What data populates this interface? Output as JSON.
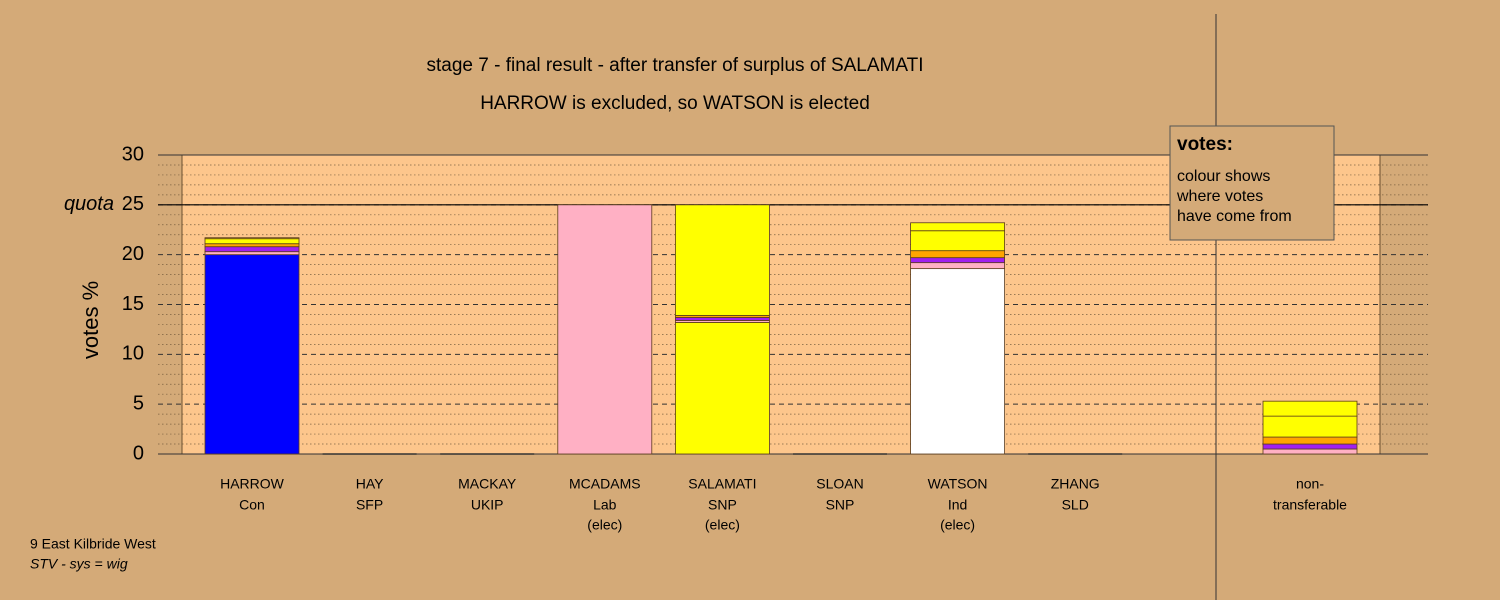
{
  "chart_data": {
    "type": "stacked-bar",
    "title": "stage 7 - final result - after transfer of surplus of SALAMATI",
    "subtitle": "HARROW is excluded, so WATSON is elected",
    "y_label": "votes %",
    "quota_label": "quota",
    "quota": 25,
    "categories": [
      "HARROW",
      "HAY",
      "MACKAY",
      "MCADAMS",
      "SALAMATI",
      "SLOAN",
      "WATSON",
      "ZHANG",
      "non-"
    ],
    "parties": [
      "Con",
      "SFP",
      "UKIP",
      "Lab",
      "SNP",
      "SNP",
      "Ind",
      "SLD",
      "transferable"
    ],
    "status": [
      null,
      null,
      null,
      "(elec)",
      "(elec)",
      null,
      "(elec)",
      null,
      null
    ],
    "series": [
      {
        "color": "#0000ff",
        "values": [
          20.0,
          0,
          0,
          0,
          0,
          0,
          0,
          0,
          0
        ]
      },
      {
        "color": "#ffffff",
        "values": [
          0,
          0,
          0,
          0,
          0,
          0,
          18.6,
          0,
          0
        ]
      },
      {
        "color": "#ffff00",
        "values": [
          0,
          0,
          0,
          0,
          13.2,
          0,
          0,
          0,
          0
        ]
      },
      {
        "color": "#ffb0c4",
        "values": [
          0.3,
          0,
          0,
          25.0,
          0.2,
          0,
          0.6,
          0,
          0.5
        ]
      },
      {
        "color": "#a020f0",
        "values": [
          0.5,
          0,
          0,
          0,
          0.3,
          0,
          0.5,
          0,
          0.5
        ]
      },
      {
        "color": "#ffa500",
        "values": [
          0.3,
          0,
          0,
          0,
          0.2,
          0,
          0.7,
          0,
          0.7
        ]
      },
      {
        "color": "#ffff00",
        "values": [
          0.5,
          0,
          0,
          0,
          11.1,
          0,
          2.0,
          0,
          2.1
        ]
      },
      {
        "color": "#ffff00",
        "values": [
          0.1,
          0,
          0,
          0,
          0,
          0,
          0.8,
          0,
          1.5
        ]
      }
    ],
    "ylim": [
      0,
      30
    ],
    "yticks": [
      0,
      5,
      10,
      15,
      20,
      25,
      30
    ],
    "grid": true,
    "legend_title": "votes:",
    "legend_text": [
      "colour shows",
      "where votes",
      "have come from"
    ],
    "footer": [
      "9 East Kilbride West",
      "STV - sys = wig"
    ]
  }
}
